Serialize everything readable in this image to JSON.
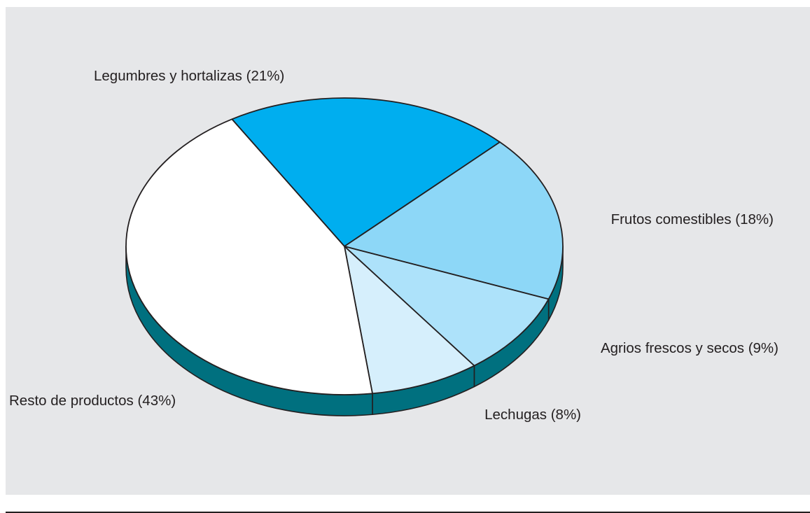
{
  "colors": {
    "background": "#e6e7e9",
    "outline": "#231f20",
    "side": "#00707f"
  },
  "chart_data": {
    "type": "pie",
    "title": "",
    "style": "3d-tilted",
    "slices": [
      {
        "label": "Legumbres y hortalizas (21%)",
        "value": 21,
        "color": "#00aeef"
      },
      {
        "label": "Frutos comestibles (18%)",
        "value": 18,
        "color": "#8dd7f7"
      },
      {
        "label": "Agrios frescos y secos (9%)",
        "value": 9,
        "color": "#ade2fa"
      },
      {
        "label": "Lechugas (8%)",
        "value": 8,
        "color": "#d6effc"
      },
      {
        "label": "Resto de productos (43%)",
        "value": 43,
        "color": "#ffffff"
      }
    ]
  }
}
